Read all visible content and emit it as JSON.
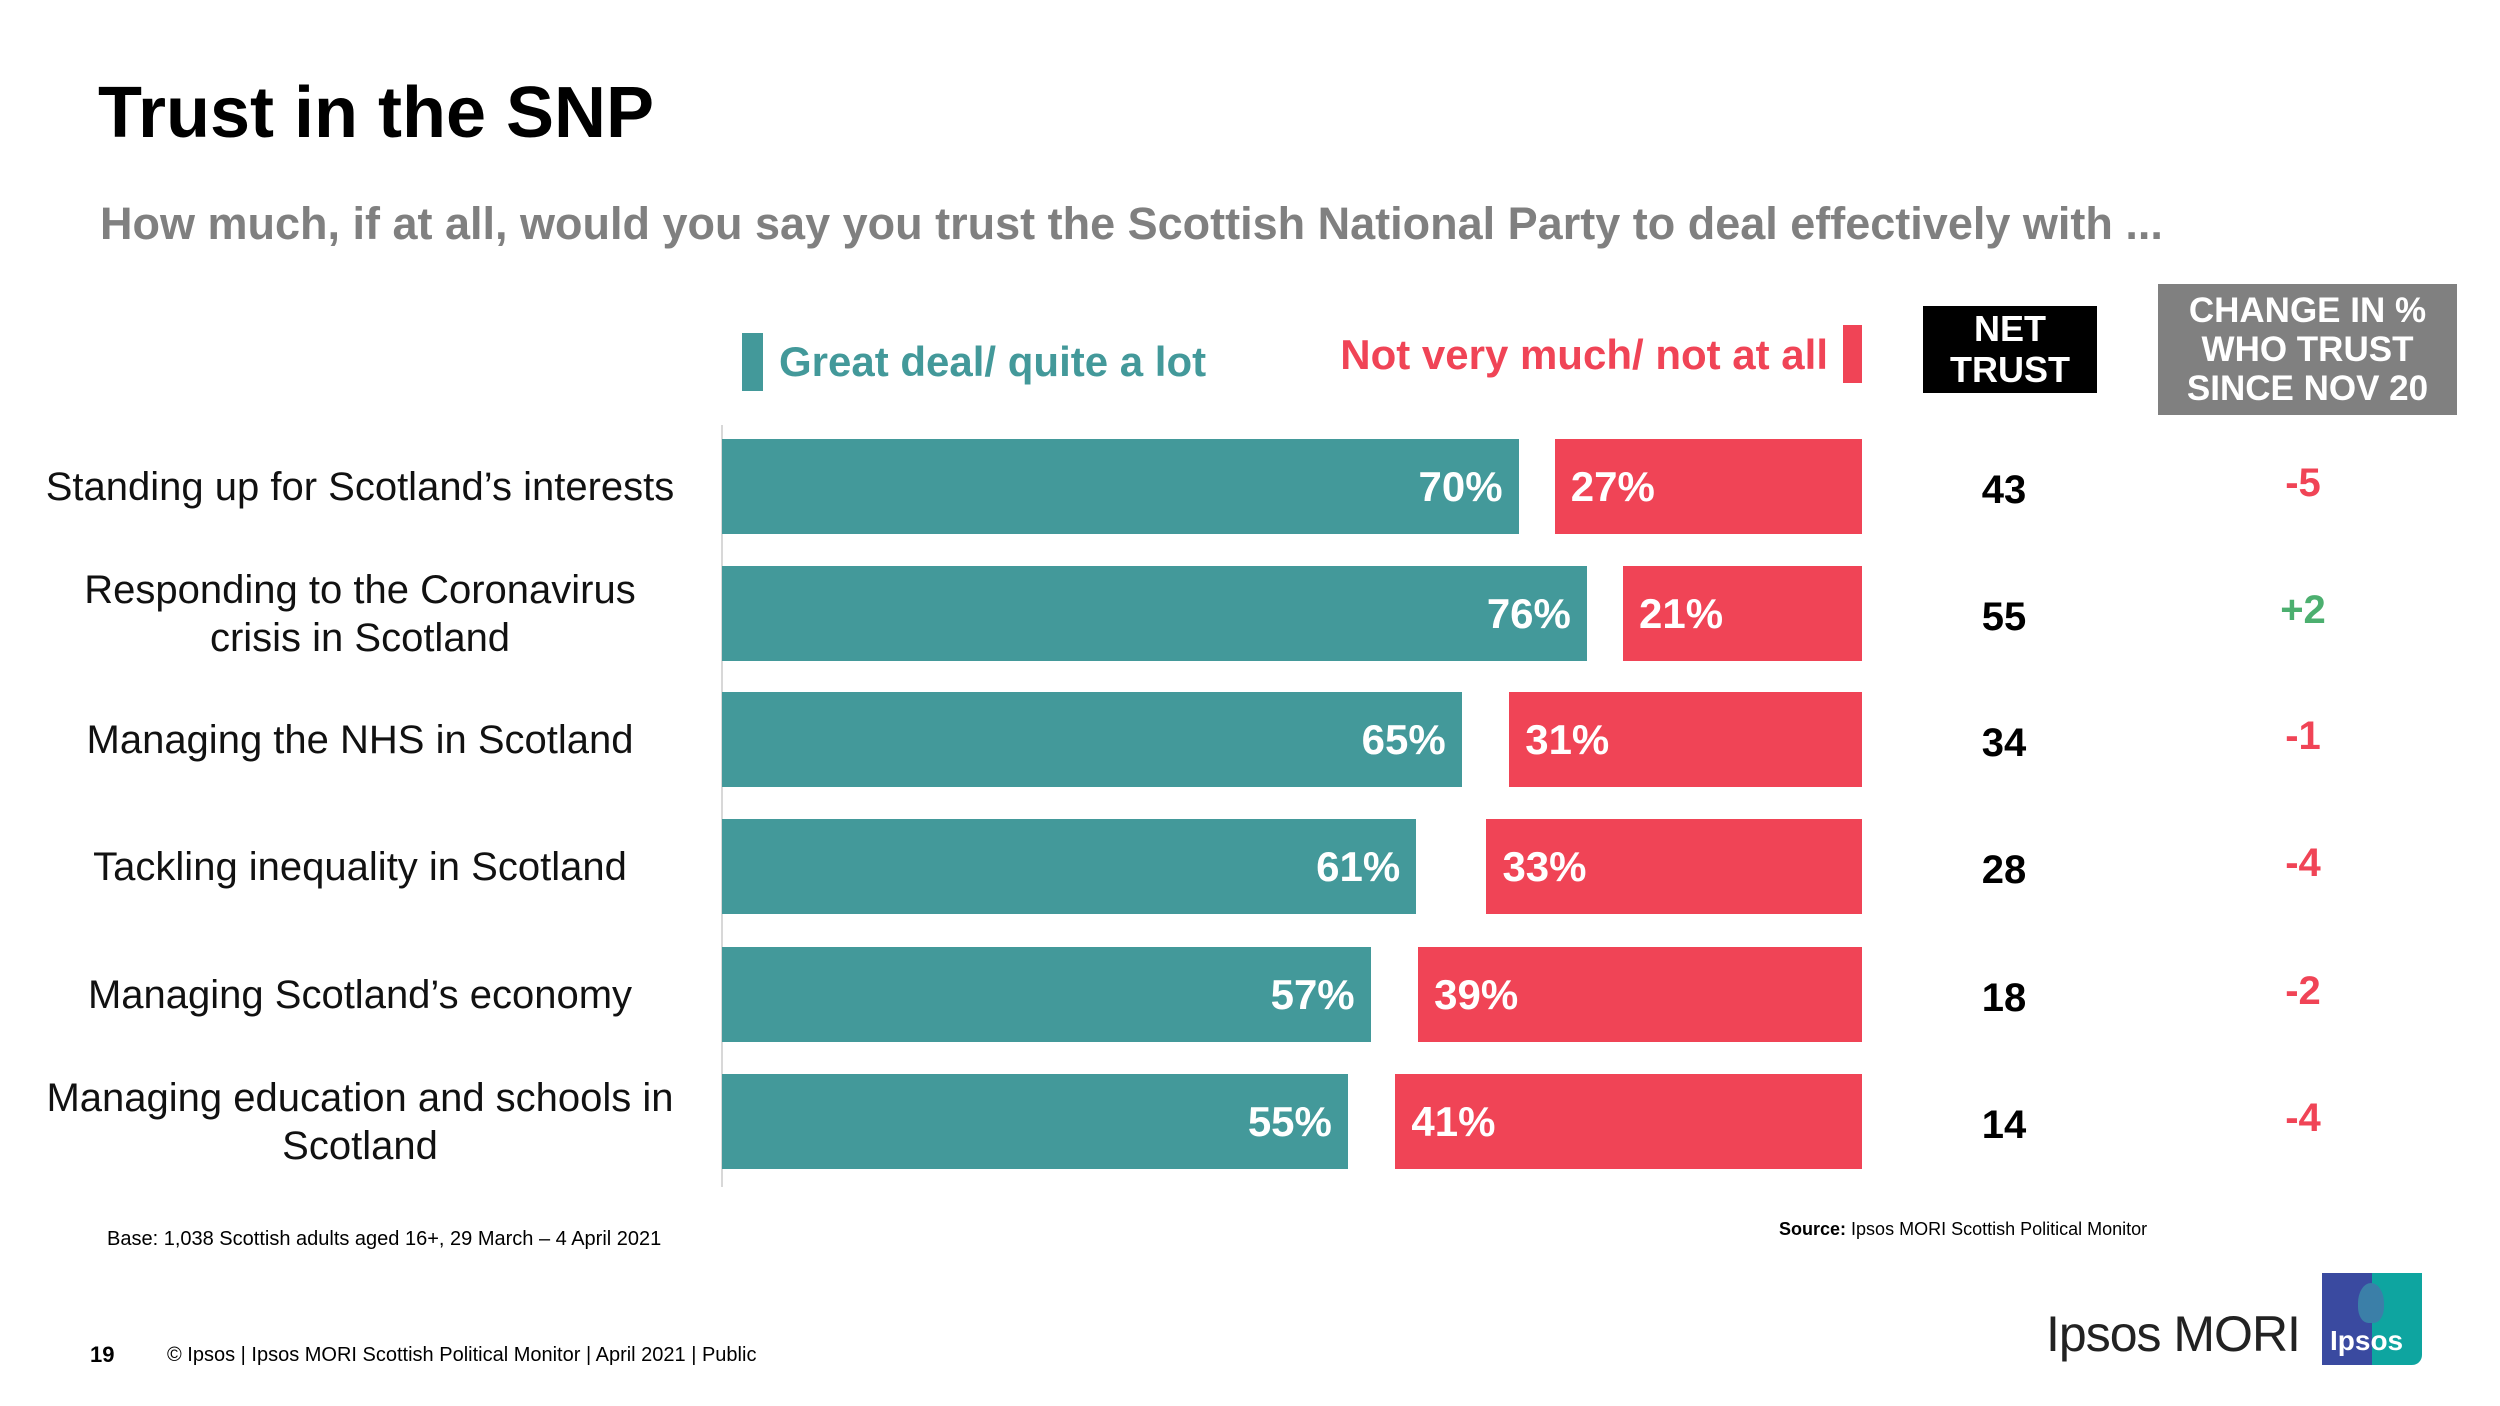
{
  "title": "Trust in the SNP",
  "subtitle": "How much, if at all, would you say you trust the Scottish National Party to deal effectively with ...",
  "colors": {
    "trust": "#43999a",
    "distrust": "#f04456",
    "positive_change": "#4caf6f",
    "negative_change": "#f04456",
    "net_header_bg": "#000000",
    "change_header_bg": "#808080"
  },
  "chart_data": {
    "type": "bar",
    "orientation": "horizontal",
    "stacked": "diverging",
    "categories": [
      "Standing up for Scotland’s interests",
      "Responding to the Coronavirus crisis in Scotland",
      "Managing the NHS in Scotland",
      "Tackling inequality in Scotland",
      "Managing Scotland’s economy",
      "Managing education and schools in Scotland"
    ],
    "series": [
      {
        "name": "Great deal/ quite a lot",
        "values": [
          70,
          76,
          65,
          61,
          57,
          55
        ],
        "labels": [
          "70%",
          "76%",
          "65%",
          "61%",
          "57%",
          "55%"
        ]
      },
      {
        "name": "Not very much/ not at all",
        "values": [
          27,
          21,
          31,
          33,
          39,
          41
        ],
        "labels": [
          "27%",
          "21%",
          "31%",
          "33%",
          "39%",
          "41%"
        ]
      }
    ],
    "legend": "top",
    "grid": false,
    "xlim": [
      0,
      100
    ],
    "table": {
      "net_header": [
        "NET",
        "TRUST"
      ],
      "change_header": [
        "CHANGE IN %",
        "WHO TRUST",
        "SINCE NOV 20"
      ],
      "net_trust": [
        "43",
        "55",
        "34",
        "28",
        "18",
        "14"
      ],
      "change": [
        "-5",
        "+2",
        "-1",
        "-4",
        "-2",
        "-4"
      ]
    }
  },
  "footer": {
    "base": "Base: 1,038 Scottish adults aged 16+, 29 March – 4 April 2021",
    "source_label": "Source:",
    "source_text": "Ipsos MORI Scottish Political Monitor",
    "page_number": "19",
    "copyright": "© Ipsos | Ipsos MORI Scottish Political Monitor | April  2021 | Public",
    "brand": "Ipsos MORI",
    "logo_text": "Ipsos"
  }
}
